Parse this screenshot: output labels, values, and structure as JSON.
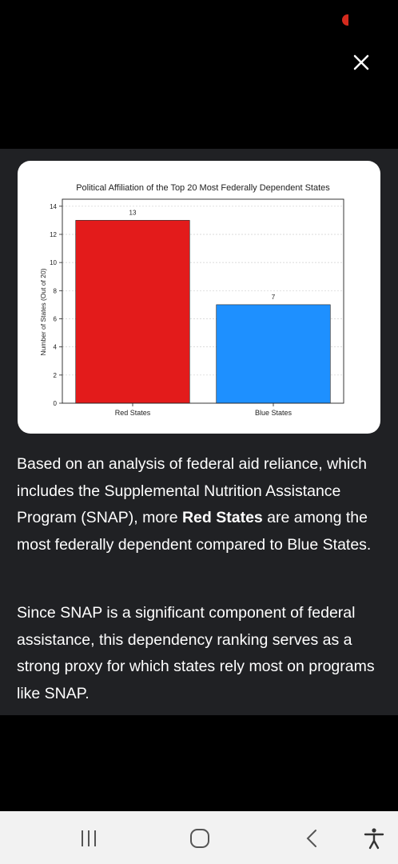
{
  "status": {
    "indicator_color": "#d42a1d"
  },
  "viewer": {
    "close_icon": "close-icon"
  },
  "chart_data": {
    "type": "bar",
    "title": "Political Affiliation of the Top 20 Most Federally Dependent States",
    "xlabel": "",
    "ylabel": "Number of States (Out of 20)",
    "categories": [
      "Red States",
      "Blue States"
    ],
    "values": [
      13,
      7
    ],
    "data_labels": [
      "13",
      "7"
    ],
    "colors": [
      "#e31b1b",
      "#1e90ff"
    ],
    "ylim": [
      0,
      14.5
    ],
    "yticks": [
      0,
      2,
      4,
      6,
      8,
      10,
      12,
      14
    ],
    "grid": true,
    "legend": "none"
  },
  "text": {
    "para1_before": "Based on an analysis of federal aid reliance, which includes the Supplemental Nutrition Assistance Program (SNAP), more ",
    "para1_bold": "Red States",
    "para1_after": " are among the most federally dependent compared to Blue States.",
    "para2": "Since SNAP is a significant component of federal assistance, this dependency ranking serves as a strong proxy for which states rely most on programs like SNAP."
  },
  "navbar": {
    "recent_apps": "recent-apps-icon",
    "home": "home-icon",
    "back": "back-icon",
    "accessibility": "accessibility-icon"
  }
}
